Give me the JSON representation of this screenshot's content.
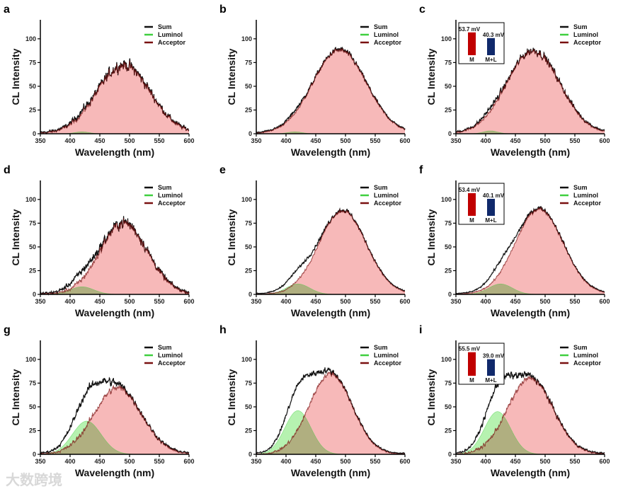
{
  "watermark": "大数跨境",
  "colors": {
    "sum": "#111111",
    "luminol_line": "#3fcf3f",
    "luminol_fill": "#b6f2b0",
    "acceptor_line": "#7a1010",
    "acceptor_fill": "#f7b9b9",
    "bar_M": "#c00000",
    "bar_ML": "#10296b"
  },
  "chart_data": [
    {
      "type": "line",
      "label": "a",
      "xlabel": "Wavelength (nm)",
      "ylabel": "CL Intensity",
      "xlim": [
        350,
        600
      ],
      "ylim": [
        0,
        120
      ],
      "xticks": [
        350,
        400,
        450,
        500,
        550,
        600
      ],
      "yticks": [
        0,
        25,
        50,
        75,
        100
      ],
      "legend": [
        "Sum",
        "Luminol",
        "Acceptor"
      ],
      "legend_position": "top-right",
      "luminol": {
        "center": 420,
        "amplitude": 2,
        "sigma": 12
      },
      "acceptor": {
        "center": 490,
        "amplitude": 72,
        "sigma": 45
      },
      "noise": 9
    },
    {
      "type": "line",
      "label": "b",
      "xlabel": "Wavelength (nm)",
      "ylabel": "CL Intensity",
      "xlim": [
        350,
        600
      ],
      "ylim": [
        0,
        120
      ],
      "xticks": [
        350,
        400,
        450,
        500,
        550,
        600
      ],
      "yticks": [
        0,
        25,
        50,
        75,
        100
      ],
      "legend": [
        "Sum",
        "Luminol",
        "Acceptor"
      ],
      "legend_position": "top-right",
      "luminol": {
        "center": 415,
        "amplitude": 2,
        "sigma": 12
      },
      "acceptor": {
        "center": 490,
        "amplitude": 88,
        "sigma": 45
      },
      "noise": 4
    },
    {
      "type": "line",
      "label": "c",
      "xlabel": "Wavelength (nm)",
      "ylabel": "CL Intensity",
      "xlim": [
        350,
        600
      ],
      "ylim": [
        0,
        120
      ],
      "xticks": [
        350,
        400,
        450,
        500,
        550,
        600
      ],
      "yticks": [
        0,
        25,
        50,
        75,
        100
      ],
      "legend": [
        "Sum",
        "Luminol",
        "Acceptor"
      ],
      "legend_position": "top-right",
      "luminol": {
        "center": 408,
        "amplitude": 3,
        "sigma": 12
      },
      "acceptor": {
        "center": 480,
        "amplitude": 87,
        "sigma": 45
      },
      "noise": 6,
      "inset": {
        "type": "bar",
        "categories": [
          "M",
          "M+L"
        ],
        "values": [
          53.7,
          40.3
        ],
        "labels": [
          "53.7 mV",
          "40.3 mV"
        ]
      }
    },
    {
      "type": "line",
      "label": "d",
      "xlabel": "Wavelength (nm)",
      "ylabel": "CL Intensity",
      "xlim": [
        350,
        600
      ],
      "ylim": [
        0,
        120
      ],
      "xticks": [
        350,
        400,
        450,
        500,
        550,
        600
      ],
      "yticks": [
        0,
        25,
        50,
        75,
        100
      ],
      "legend": [
        "Sum",
        "Luminol",
        "Acceptor"
      ],
      "legend_position": "top-right",
      "luminol": {
        "center": 420,
        "amplitude": 8,
        "sigma": 20
      },
      "acceptor": {
        "center": 490,
        "amplitude": 75,
        "sigma": 40
      },
      "noise": 9
    },
    {
      "type": "line",
      "label": "e",
      "xlabel": "Wavelength (nm)",
      "ylabel": "CL Intensity",
      "xlim": [
        350,
        600
      ],
      "ylim": [
        0,
        120
      ],
      "xticks": [
        350,
        400,
        450,
        500,
        550,
        600
      ],
      "yticks": [
        0,
        25,
        50,
        75,
        100
      ],
      "legend": [
        "Sum",
        "Luminol",
        "Acceptor"
      ],
      "legend_position": "top-right",
      "luminol": {
        "center": 420,
        "amplitude": 11,
        "sigma": 20
      },
      "acceptor": {
        "center": 495,
        "amplitude": 88,
        "sigma": 40
      },
      "noise": 3
    },
    {
      "type": "line",
      "label": "f",
      "xlabel": "Wavelength (nm)",
      "ylabel": "CL Intensity",
      "xlim": [
        350,
        600
      ],
      "ylim": [
        0,
        120
      ],
      "xticks": [
        350,
        400,
        450,
        500,
        550,
        600
      ],
      "yticks": [
        0,
        25,
        50,
        75,
        100
      ],
      "legend": [
        "Sum",
        "Luminol",
        "Acceptor"
      ],
      "legend_position": "top-right",
      "luminol": {
        "center": 425,
        "amplitude": 11,
        "sigma": 20
      },
      "acceptor": {
        "center": 490,
        "amplitude": 90,
        "sigma": 40
      },
      "noise": 3,
      "inset": {
        "type": "bar",
        "categories": [
          "M",
          "M+L"
        ],
        "values": [
          53.4,
          40.1
        ],
        "labels": [
          "53.4 mV",
          "40.1 mV"
        ]
      }
    },
    {
      "type": "line",
      "label": "g",
      "xlabel": "Wavelength (nm)",
      "ylabel": "CL Intensity",
      "xlim": [
        350,
        600
      ],
      "ylim": [
        0,
        120
      ],
      "xticks": [
        350,
        400,
        450,
        500,
        550,
        600
      ],
      "yticks": [
        0,
        25,
        50,
        75,
        100
      ],
      "legend": [
        "Sum",
        "Luminol",
        "Acceptor"
      ],
      "legend_position": "top-right",
      "luminol": {
        "center": 428,
        "amplitude": 35,
        "sigma": 24
      },
      "acceptor": {
        "center": 480,
        "amplitude": 70,
        "sigma": 40
      },
      "noise": 6
    },
    {
      "type": "line",
      "label": "h",
      "xlabel": "Wavelength (nm)",
      "ylabel": "CL Intensity",
      "xlim": [
        350,
        600
      ],
      "ylim": [
        0,
        120
      ],
      "xticks": [
        350,
        400,
        450,
        500,
        550,
        600
      ],
      "yticks": [
        0,
        25,
        50,
        75,
        100
      ],
      "legend": [
        "Sum",
        "Luminol",
        "Acceptor"
      ],
      "legend_position": "top-right",
      "luminol": {
        "center": 420,
        "amplitude": 46,
        "sigma": 22
      },
      "acceptor": {
        "center": 475,
        "amplitude": 85,
        "sigma": 36
      },
      "noise": 4
    },
    {
      "type": "line",
      "label": "i",
      "xlabel": "Wavelength (nm)",
      "ylabel": "CL Intensity",
      "xlim": [
        350,
        600
      ],
      "ylim": [
        0,
        120
      ],
      "xticks": [
        350,
        400,
        450,
        500,
        550,
        600
      ],
      "yticks": [
        0,
        25,
        50,
        75,
        100
      ],
      "legend": [
        "Sum",
        "Luminol",
        "Acceptor"
      ],
      "legend_position": "top-right",
      "luminol": {
        "center": 420,
        "amplitude": 45,
        "sigma": 22
      },
      "acceptor": {
        "center": 475,
        "amplitude": 80,
        "sigma": 38
      },
      "noise": 5,
      "inset": {
        "type": "bar",
        "categories": [
          "M",
          "M+L"
        ],
        "values": [
          55.5,
          39.0
        ],
        "labels": [
          "55.5 mV",
          "39.0 mV"
        ]
      }
    }
  ]
}
